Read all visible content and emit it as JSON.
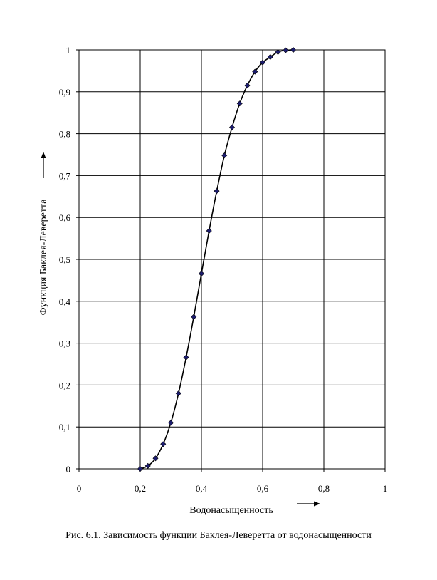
{
  "chart_data": {
    "type": "line",
    "title": "",
    "xlabel": "Водонасыщенность",
    "ylabel": "Функция Баклея-Леверетта",
    "xlim": [
      0,
      1
    ],
    "ylim": [
      0,
      1
    ],
    "x_ticks": [
      "0",
      "0,2",
      "0,4",
      "0,6",
      "0,8",
      "1"
    ],
    "y_ticks": [
      "0",
      "0,1",
      "0,2",
      "0,3",
      "0,4",
      "0,5",
      "0,6",
      "0,7",
      "0,8",
      "0,9",
      "1"
    ],
    "grid": true,
    "marker": "diamond",
    "line_color": "#000000",
    "marker_color": "#1c1c6e",
    "series": [
      {
        "x": [
          0.2,
          0.225,
          0.25,
          0.275,
          0.3,
          0.325,
          0.35,
          0.375,
          0.4,
          0.425,
          0.45,
          0.475,
          0.5,
          0.525,
          0.55,
          0.575,
          0.6,
          0.625,
          0.65,
          0.675,
          0.7
        ],
        "y": [
          0.0,
          0.007,
          0.025,
          0.059,
          0.11,
          0.18,
          0.266,
          0.363,
          0.466,
          0.568,
          0.663,
          0.748,
          0.815,
          0.872,
          0.915,
          0.948,
          0.97,
          0.983,
          0.995,
          0.999,
          1.0
        ]
      }
    ]
  },
  "caption": "Рис. 6.1. Зависимость функции Баклея-Леверетта от водонасыщенности"
}
